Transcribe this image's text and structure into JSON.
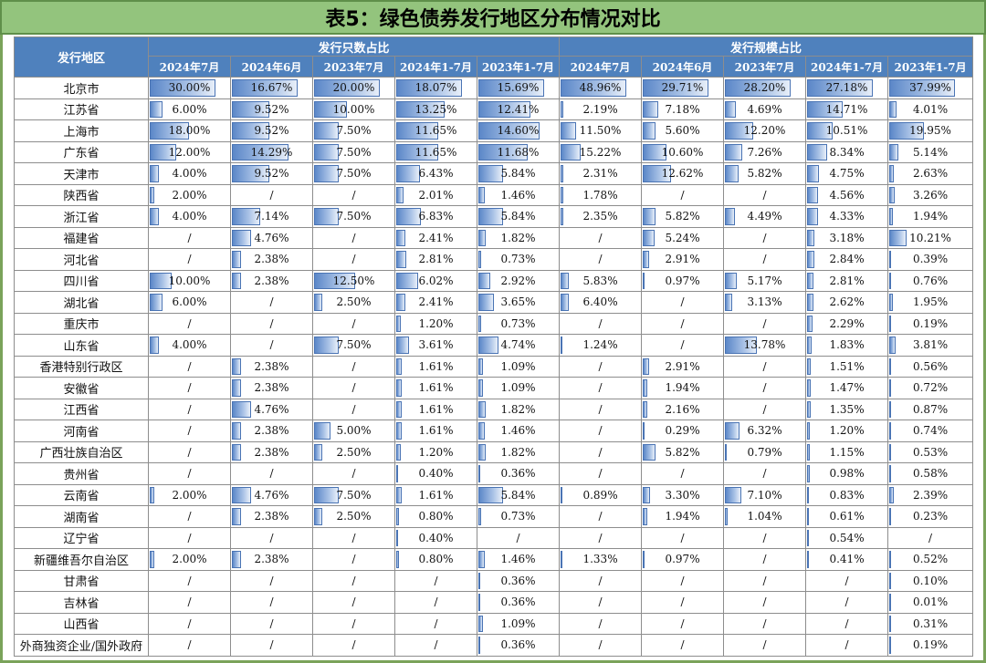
{
  "title": "表5：绿色债券发行地区分布情况对比",
  "header": {
    "region_label": "发行地区",
    "group_count": "发行只数占比",
    "group_scale": "发行规模占比",
    "periods": [
      "2024年7月",
      "2024年6月",
      "2023年7月",
      "2024年1-7月",
      "2023年1-7月",
      "2024年7月",
      "2024年6月",
      "2023年7月",
      "2024年1-7月",
      "2023年1-7月"
    ]
  },
  "bar_color": "#5b87c8",
  "rows": [
    {
      "region": "北京市",
      "cells": [
        "30.00%",
        "16.67%",
        "20.00%",
        "18.07%",
        "15.69%",
        "48.96%",
        "29.71%",
        "28.20%",
        "27.18%",
        "37.99%"
      ]
    },
    {
      "region": "江苏省",
      "cells": [
        "6.00%",
        "9.52%",
        "10.00%",
        "13.25%",
        "12.41%",
        "2.19%",
        "7.18%",
        "4.69%",
        "14.71%",
        "4.01%"
      ]
    },
    {
      "region": "上海市",
      "cells": [
        "18.00%",
        "9.52%",
        "7.50%",
        "11.65%",
        "14.60%",
        "11.50%",
        "5.60%",
        "12.20%",
        "10.51%",
        "19.95%"
      ]
    },
    {
      "region": "广东省",
      "cells": [
        "12.00%",
        "14.29%",
        "7.50%",
        "11.65%",
        "11.68%",
        "15.22%",
        "10.60%",
        "7.26%",
        "8.34%",
        "5.14%"
      ]
    },
    {
      "region": "天津市",
      "cells": [
        "4.00%",
        "9.52%",
        "7.50%",
        "6.43%",
        "5.84%",
        "2.31%",
        "12.62%",
        "5.82%",
        "4.75%",
        "2.63%"
      ]
    },
    {
      "region": "陕西省",
      "cells": [
        "2.00%",
        "/",
        "/",
        "2.01%",
        "1.46%",
        "1.78%",
        "/",
        "/",
        "4.56%",
        "3.26%"
      ]
    },
    {
      "region": "浙江省",
      "cells": [
        "4.00%",
        "7.14%",
        "7.50%",
        "6.83%",
        "5.84%",
        "2.35%",
        "5.82%",
        "4.49%",
        "4.33%",
        "1.94%"
      ]
    },
    {
      "region": "福建省",
      "cells": [
        "/",
        "4.76%",
        "/",
        "2.41%",
        "1.82%",
        "/",
        "5.24%",
        "/",
        "3.18%",
        "10.21%"
      ]
    },
    {
      "region": "河北省",
      "cells": [
        "/",
        "2.38%",
        "/",
        "2.81%",
        "0.73%",
        "/",
        "2.91%",
        "/",
        "2.84%",
        "0.39%"
      ]
    },
    {
      "region": "四川省",
      "cells": [
        "10.00%",
        "2.38%",
        "12.50%",
        "6.02%",
        "2.92%",
        "5.83%",
        "0.97%",
        "5.17%",
        "2.81%",
        "0.76%"
      ]
    },
    {
      "region": "湖北省",
      "cells": [
        "6.00%",
        "/",
        "2.50%",
        "2.41%",
        "3.65%",
        "6.40%",
        "/",
        "3.13%",
        "2.62%",
        "1.95%"
      ]
    },
    {
      "region": "重庆市",
      "cells": [
        "/",
        "/",
        "/",
        "1.20%",
        "0.73%",
        "/",
        "/",
        "/",
        "2.29%",
        "0.19%"
      ]
    },
    {
      "region": "山东省",
      "cells": [
        "4.00%",
        "/",
        "7.50%",
        "3.61%",
        "4.74%",
        "1.24%",
        "/",
        "13.78%",
        "1.83%",
        "3.81%"
      ]
    },
    {
      "region": "香港特别行政区",
      "cells": [
        "/",
        "2.38%",
        "/",
        "1.61%",
        "1.09%",
        "/",
        "2.91%",
        "/",
        "1.51%",
        "0.56%"
      ]
    },
    {
      "region": "安徽省",
      "cells": [
        "/",
        "2.38%",
        "/",
        "1.61%",
        "1.09%",
        "/",
        "1.94%",
        "/",
        "1.47%",
        "0.72%"
      ]
    },
    {
      "region": "江西省",
      "cells": [
        "/",
        "4.76%",
        "/",
        "1.61%",
        "1.82%",
        "/",
        "2.16%",
        "/",
        "1.35%",
        "0.87%"
      ]
    },
    {
      "region": "河南省",
      "cells": [
        "/",
        "2.38%",
        "5.00%",
        "1.61%",
        "1.46%",
        "/",
        "0.29%",
        "6.32%",
        "1.20%",
        "0.74%"
      ]
    },
    {
      "region": "广西壮族自治区",
      "cells": [
        "/",
        "2.38%",
        "2.50%",
        "1.20%",
        "1.82%",
        "/",
        "5.82%",
        "0.79%",
        "1.15%",
        "0.53%"
      ]
    },
    {
      "region": "贵州省",
      "cells": [
        "/",
        "/",
        "/",
        "0.40%",
        "0.36%",
        "/",
        "/",
        "/",
        "0.98%",
        "0.58%"
      ]
    },
    {
      "region": "云南省",
      "cells": [
        "2.00%",
        "4.76%",
        "7.50%",
        "1.61%",
        "5.84%",
        "0.89%",
        "3.30%",
        "7.10%",
        "0.83%",
        "2.39%"
      ]
    },
    {
      "region": "湖南省",
      "cells": [
        "/",
        "2.38%",
        "2.50%",
        "0.80%",
        "0.73%",
        "/",
        "1.94%",
        "1.04%",
        "0.61%",
        "0.23%"
      ]
    },
    {
      "region": "辽宁省",
      "cells": [
        "/",
        "/",
        "/",
        "0.40%",
        "/",
        "/",
        "/",
        "/",
        "0.54%",
        "/"
      ]
    },
    {
      "region": "新疆维吾尔自治区",
      "cells": [
        "2.00%",
        "2.38%",
        "/",
        "0.80%",
        "1.46%",
        "1.33%",
        "0.97%",
        "/",
        "0.41%",
        "0.52%"
      ]
    },
    {
      "region": "甘肃省",
      "cells": [
        "/",
        "/",
        "/",
        "/",
        "0.36%",
        "/",
        "/",
        "/",
        "/",
        "0.10%"
      ]
    },
    {
      "region": "吉林省",
      "cells": [
        "/",
        "/",
        "/",
        "/",
        "0.36%",
        "/",
        "/",
        "/",
        "/",
        "0.01%"
      ]
    },
    {
      "region": "山西省",
      "cells": [
        "/",
        "/",
        "/",
        "/",
        "1.09%",
        "/",
        "/",
        "/",
        "/",
        "0.31%"
      ]
    },
    {
      "region": "外商独资企业/国外政府",
      "cells": [
        "/",
        "/",
        "/",
        "/",
        "0.36%",
        "/",
        "/",
        "/",
        "/",
        "0.19%"
      ]
    }
  ]
}
